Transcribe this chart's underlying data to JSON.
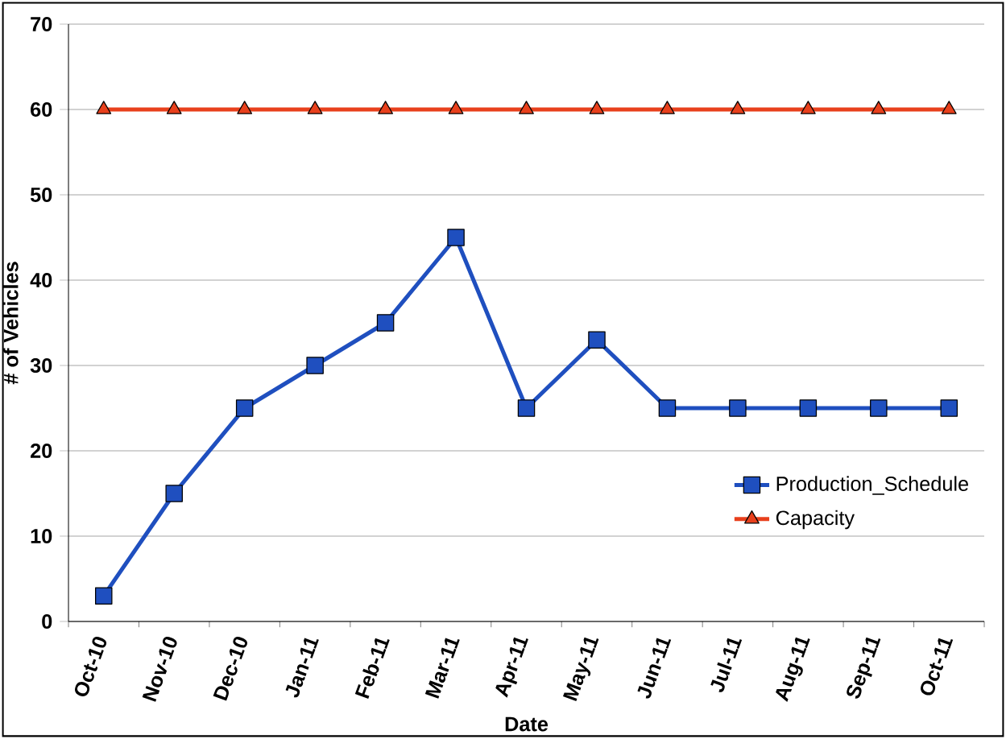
{
  "chart_data": {
    "type": "line",
    "xlabel": "Date",
    "ylabel": "# of Vehicles",
    "categories": [
      "Oct-10",
      "Nov-10",
      "Dec-10",
      "Jan-11",
      "Feb-11",
      "Mar-11",
      "Apr-11",
      "May-11",
      "Jun-11",
      "Jul-11",
      "Aug-11",
      "Sep-11",
      "Oct-11"
    ],
    "series": [
      {
        "name": "Production_Schedule",
        "color": "#1f4fbf",
        "marker": "square",
        "values": [
          3,
          15,
          25,
          30,
          35,
          45,
          25,
          33,
          25,
          25,
          25,
          25,
          25
        ]
      },
      {
        "name": "Capacity",
        "color": "#e8401c",
        "marker": "triangle",
        "values": [
          60,
          60,
          60,
          60,
          60,
          60,
          60,
          60,
          60,
          60,
          60,
          60,
          60
        ]
      }
    ],
    "ylim": [
      0,
      70
    ],
    "yticks": [
      0,
      10,
      20,
      30,
      40,
      50,
      60,
      70
    ],
    "grid": "y",
    "legend": "right"
  }
}
